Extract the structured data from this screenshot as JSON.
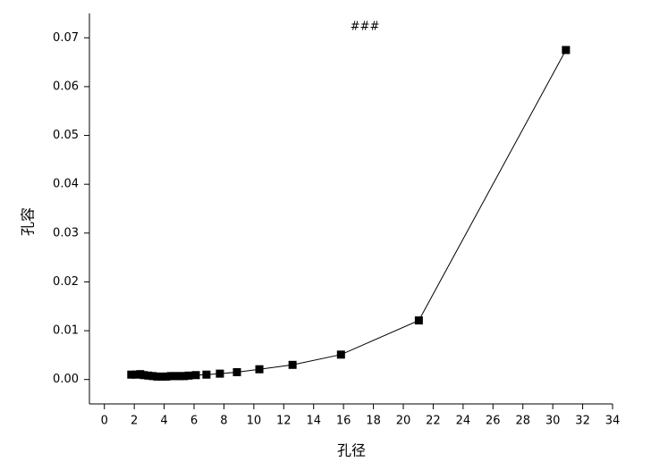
{
  "chart_data": {
    "type": "line",
    "title": "###",
    "x_label": "孔径",
    "y_label": "孔容",
    "series": [
      {
        "color": "#000000",
        "x": [
          1.8,
          2.1,
          2.4,
          2.64,
          2.94,
          3.24,
          3.54,
          3.84,
          4.14,
          4.44,
          4.74,
          5.04,
          5.34,
          5.64,
          6.12,
          6.83,
          7.73,
          8.87,
          10.37,
          12.59,
          15.83,
          21.04,
          30.88
        ],
        "values": [
          0.001,
          0.001,
          0.0011,
          0.0009,
          0.0008,
          0.0007,
          0.0006,
          0.0006,
          0.0006,
          0.0007,
          0.0007,
          0.0007,
          0.0007,
          0.0008,
          0.0009,
          0.001,
          0.0012,
          0.0015,
          0.0021,
          0.003,
          0.0051,
          0.0121,
          0.0675
        ]
      }
    ],
    "xlim": [
      -1,
      34
    ],
    "ylim": [
      -0.005,
      0.075
    ],
    "xticks": [
      0,
      2,
      4,
      6,
      8,
      10,
      12,
      14,
      16,
      18,
      20,
      22,
      24,
      26,
      28,
      30,
      32,
      34
    ],
    "yticks": [
      {
        "value": 0,
        "label": "0.00"
      },
      0.01,
      0.02,
      0.03,
      0.04,
      0.05,
      0.06,
      0.07
    ]
  }
}
